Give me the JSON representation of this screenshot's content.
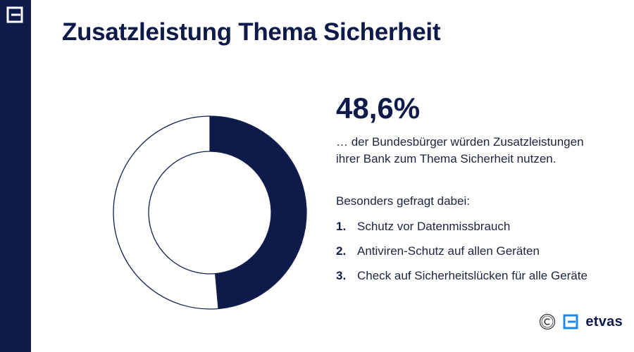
{
  "header": {
    "title": "Zusatzleistung Thema Sicherheit"
  },
  "stat": {
    "value": "48,6%",
    "description_line1": "… der Bundesbürger würden Zusatzleistungen",
    "description_line2": "ihrer Bank zum Thema Sicherheit nutzen."
  },
  "list": {
    "heading": "Besonders gefragt dabei:",
    "items": [
      {
        "number": "1.",
        "text": "Schutz vor Datenmissbrauch"
      },
      {
        "number": "2.",
        "text": "Antiviren-Schutz auf allen Geräten"
      },
      {
        "number": "3.",
        "text": "Check auf Sicherheitslücken für alle Geräte"
      }
    ]
  },
  "footer": {
    "brand": "etvas"
  },
  "colors": {
    "primary": "#0e1a4a",
    "ring_background": "#ffffff",
    "ring_outline": "#14204e"
  },
  "icons": [
    "etvas-logo-icon",
    "copyright-icon"
  ],
  "chart_data": {
    "type": "pie",
    "variant": "donut",
    "values": [
      48.6,
      51.4
    ],
    "unit": "%"
  }
}
